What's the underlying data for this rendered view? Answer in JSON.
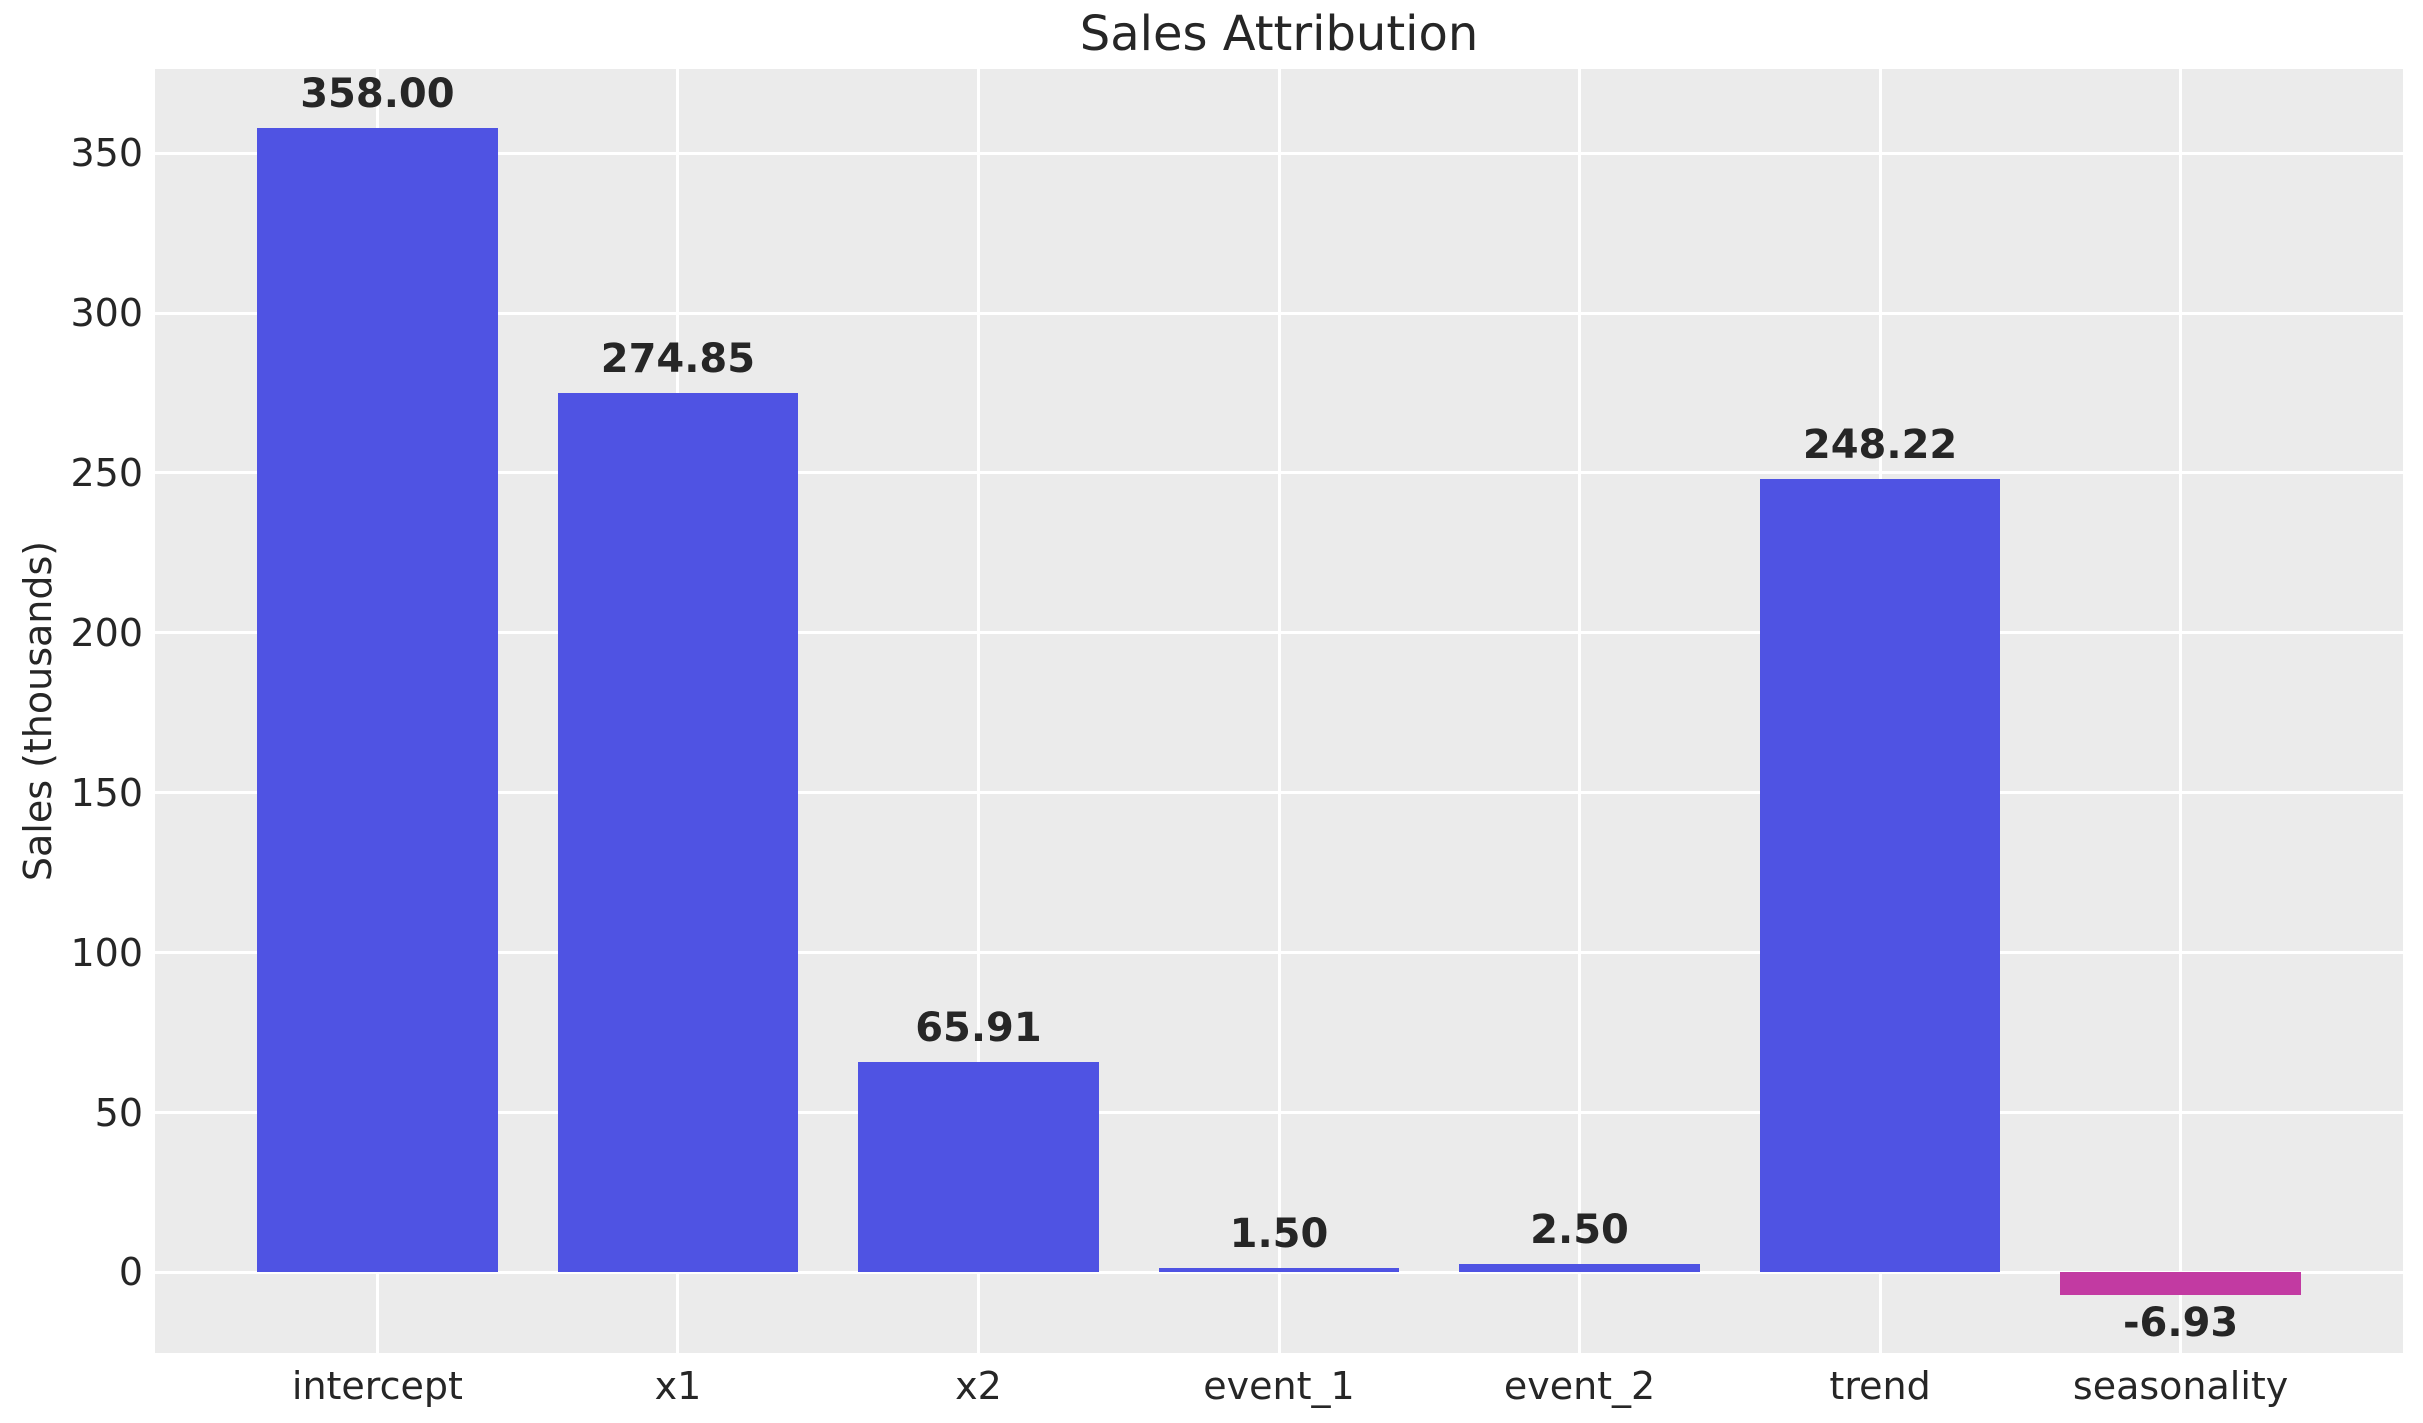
{
  "chart_data": {
    "type": "bar",
    "title": "Sales Attribution",
    "xlabel": "",
    "ylabel": "Sales (thousands)",
    "categories": [
      "intercept",
      "x1",
      "x2",
      "event_1",
      "event_2",
      "trend",
      "seasonality"
    ],
    "values": [
      358.0,
      274.85,
      65.91,
      1.5,
      2.5,
      248.22,
      -6.93
    ],
    "value_labels": [
      "358.00",
      "274.85",
      "65.91",
      "1.50",
      "2.50",
      "248.22",
      "-6.93"
    ],
    "yticks": [
      0,
      50,
      100,
      150,
      200,
      250,
      300,
      350
    ],
    "ytick_labels": [
      "0",
      "50",
      "100",
      "150",
      "200",
      "250",
      "300",
      "350"
    ],
    "ylim": [
      -25.2,
      376.3
    ],
    "xlim": [
      -0.74,
      6.74
    ],
    "bar_width": 0.8,
    "grid": true,
    "legend_position": "none",
    "colors": {
      "positive_bar": "#4f53e3",
      "negative_bar": "#c23aa2",
      "plot_background": "#ebebeb",
      "gridline": "#ffffff",
      "text": "#262626",
      "figure_background": "#ffffff"
    }
  }
}
